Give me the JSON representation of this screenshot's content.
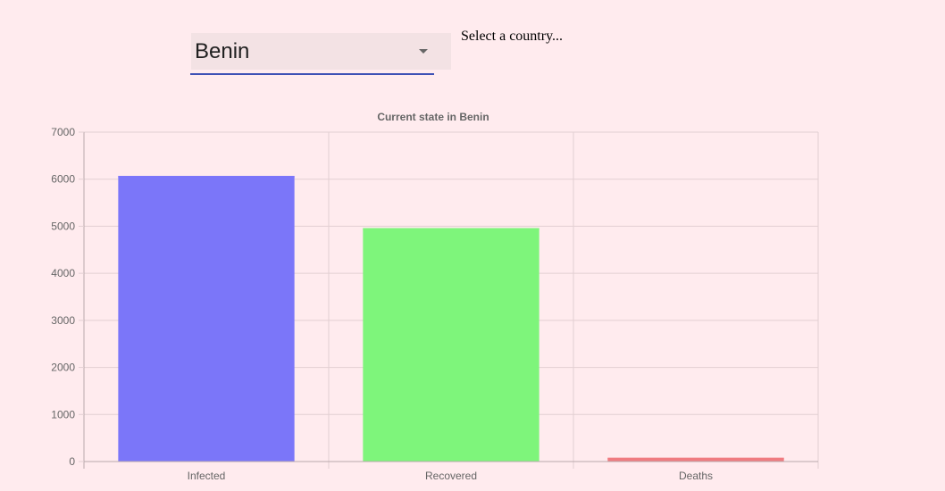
{
  "selector": {
    "value": "Benin",
    "hint": "Select a country..."
  },
  "chart_data": {
    "type": "bar",
    "title": "Current state in Benin",
    "categories": [
      "Infected",
      "Recovered",
      "Deaths"
    ],
    "values": [
      6070,
      4960,
      80
    ],
    "colors": [
      "#7b76f9",
      "#7ef57b",
      "#ef7b80"
    ],
    "ylim": [
      0,
      7000
    ],
    "yticks": [
      0,
      1000,
      2000,
      3000,
      4000,
      5000,
      6000,
      7000
    ],
    "xlabel": "",
    "ylabel": "",
    "grid": true,
    "legend": "none"
  }
}
